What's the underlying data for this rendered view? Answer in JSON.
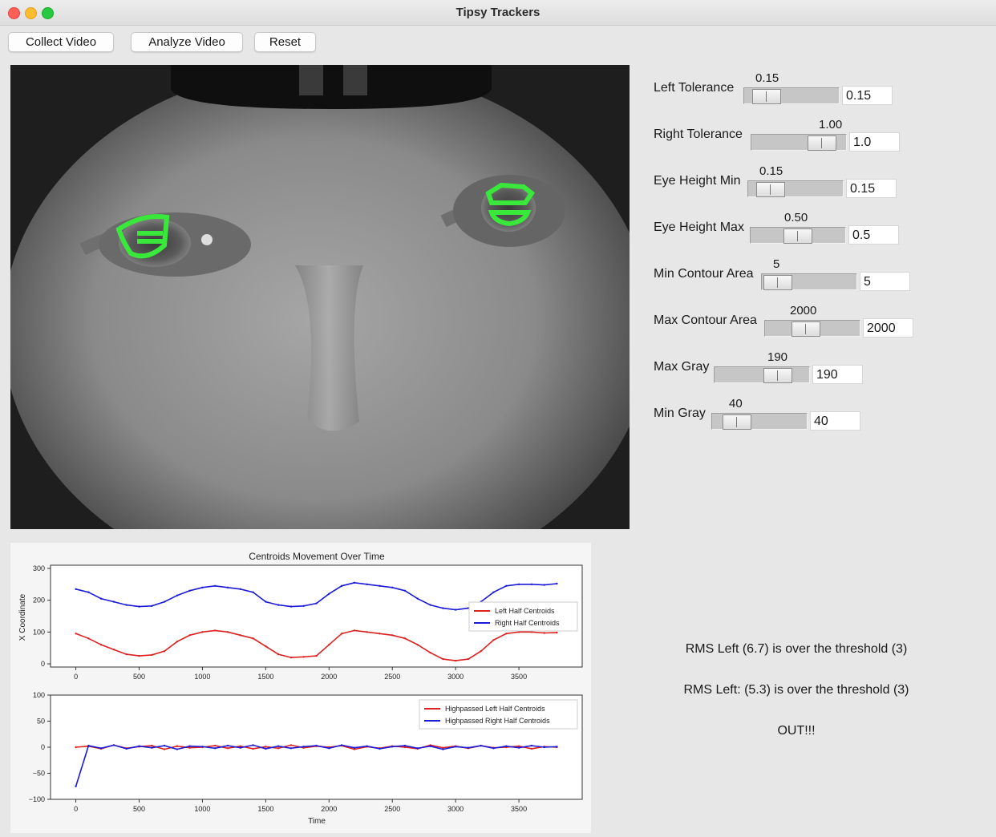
{
  "window": {
    "title": "Tipsy Trackers"
  },
  "toolbar": {
    "collect_label": "Collect Video",
    "analyze_label": "Analyze Video",
    "reset_label": "Reset"
  },
  "sliders": [
    {
      "label": "Left Tolerance",
      "display": "0.15",
      "entry": "0.15",
      "position": 0.12
    },
    {
      "label": "Right Tolerance",
      "display": "1.00",
      "entry": "1.0",
      "position": 0.85
    },
    {
      "label": "Eye Height Min",
      "display": "0.15",
      "entry": "0.15",
      "position": 0.12
    },
    {
      "label": "Eye Height Max",
      "display": "0.50",
      "entry": "0.5",
      "position": 0.5
    },
    {
      "label": "Min Contour Area",
      "display": "5",
      "entry": "5",
      "position": 0.03
    },
    {
      "label": "Max Contour Area",
      "display": "2000",
      "entry": "2000",
      "position": 0.4
    },
    {
      "label": "Max Gray",
      "display": "190",
      "entry": "190",
      "position": 0.74
    },
    {
      "label": "Min Gray",
      "display": "40",
      "entry": "40",
      "position": 0.16
    }
  ],
  "status": {
    "line1": "RMS Left (6.7) is over the threshold (3)",
    "line2": "RMS Left: (5.3) is over the threshold (3)",
    "line3": "OUT!!!"
  },
  "chart_data": [
    {
      "type": "line",
      "title": "Centroids Movement Over Time",
      "xlabel": "",
      "ylabel": "X Coordinate",
      "xlim": [
        -200,
        4000
      ],
      "ylim": [
        -10,
        310
      ],
      "xticks": [
        0,
        500,
        1000,
        1500,
        2000,
        2500,
        3000,
        3500
      ],
      "yticks": [
        0,
        100,
        200,
        300
      ],
      "legend": "right",
      "series": [
        {
          "name": "Left Half Centroids",
          "color": "#dd2020",
          "x": [
            0,
            100,
            200,
            300,
            400,
            500,
            600,
            700,
            800,
            900,
            1000,
            1100,
            1200,
            1300,
            1400,
            1500,
            1600,
            1700,
            1800,
            1900,
            2000,
            2100,
            2200,
            2300,
            2400,
            2500,
            2600,
            2700,
            2800,
            2900,
            3000,
            3100,
            3200,
            3300,
            3400,
            3500,
            3600,
            3700,
            3800
          ],
          "values": [
            95,
            80,
            60,
            45,
            30,
            25,
            28,
            40,
            70,
            90,
            100,
            105,
            100,
            90,
            80,
            55,
            30,
            20,
            22,
            25,
            60,
            95,
            105,
            100,
            95,
            90,
            80,
            60,
            35,
            15,
            10,
            15,
            40,
            75,
            95,
            100,
            100,
            97,
            98
          ]
        },
        {
          "name": "Right Half Centroids",
          "color": "#1a1ad8",
          "x": [
            0,
            100,
            200,
            300,
            400,
            500,
            600,
            700,
            800,
            900,
            1000,
            1100,
            1200,
            1300,
            1400,
            1500,
            1600,
            1700,
            1800,
            1900,
            2000,
            2100,
            2200,
            2300,
            2400,
            2500,
            2600,
            2700,
            2800,
            2900,
            3000,
            3100,
            3200,
            3300,
            3400,
            3500,
            3600,
            3700,
            3800
          ],
          "values": [
            235,
            225,
            205,
            195,
            185,
            180,
            182,
            195,
            215,
            230,
            240,
            245,
            240,
            235,
            225,
            195,
            185,
            180,
            182,
            190,
            220,
            245,
            255,
            250,
            245,
            240,
            230,
            205,
            185,
            175,
            170,
            175,
            195,
            225,
            245,
            250,
            250,
            248,
            252
          ]
        }
      ]
    },
    {
      "type": "line",
      "title": "",
      "xlabel": "Time",
      "ylabel": "",
      "xlim": [
        -200,
        4000
      ],
      "ylim": [
        -100,
        100
      ],
      "xticks": [
        0,
        500,
        1000,
        1500,
        2000,
        2500,
        3000,
        3500
      ],
      "yticks": [
        -100,
        -50,
        0,
        50,
        100
      ],
      "legend": "top-right",
      "series": [
        {
          "name": "Highpassed Left Half Centroids",
          "color": "#dd2020",
          "x": [
            0,
            100,
            200,
            300,
            400,
            500,
            600,
            700,
            800,
            900,
            1000,
            1100,
            1200,
            1300,
            1400,
            1500,
            1600,
            1700,
            1800,
            1900,
            2000,
            2100,
            2200,
            2300,
            2400,
            2500,
            2600,
            2700,
            2800,
            2900,
            3000,
            3100,
            3200,
            3300,
            3400,
            3500,
            3600,
            3700,
            3800
          ],
          "values": [
            0,
            2,
            -3,
            4,
            -2,
            1,
            3,
            -4,
            2,
            -1,
            0,
            3,
            -2,
            2,
            -3,
            1,
            -2,
            4,
            -1,
            2,
            0,
            3,
            -4,
            1,
            -2,
            2,
            0,
            -3,
            4,
            -1,
            2,
            -2,
            3,
            -1,
            0,
            2,
            -3,
            1,
            0
          ]
        },
        {
          "name": "Highpassed Right Half Centroids",
          "color": "#1a1ad8",
          "x": [
            0,
            100,
            200,
            300,
            400,
            500,
            600,
            700,
            800,
            900,
            1000,
            1100,
            1200,
            1300,
            1400,
            1500,
            1600,
            1700,
            1800,
            1900,
            2000,
            2100,
            2200,
            2300,
            2400,
            2500,
            2600,
            2700,
            2800,
            2900,
            3000,
            3100,
            3200,
            3300,
            3400,
            3500,
            3600,
            3700,
            3800
          ],
          "values": [
            -75,
            3,
            -2,
            4,
            -3,
            2,
            -1,
            3,
            -4,
            2,
            1,
            -2,
            3,
            -1,
            4,
            -3,
            2,
            -2,
            1,
            3,
            -2,
            4,
            -1,
            2,
            -3,
            1,
            3,
            -2,
            2,
            -4,
            1,
            -1,
            3,
            -2,
            2,
            -1,
            3,
            0,
            1
          ]
        }
      ]
    }
  ]
}
